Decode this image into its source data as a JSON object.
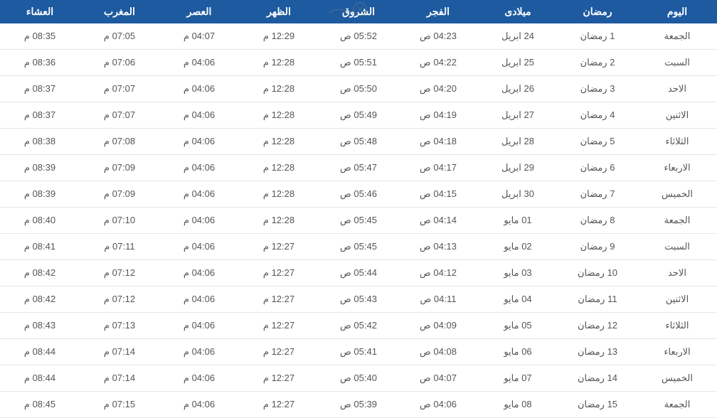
{
  "table": {
    "header_bg": "#1e5aa0",
    "header_fg": "#ffffff",
    "row_bg": "#ffffff",
    "row_fg": "#555555",
    "border_color": "#e5e5e5",
    "columns": [
      "اليوم",
      "رمضان",
      "ميلادى",
      "الفجر",
      "الشروق",
      "الظهر",
      "العصر",
      "المغرب",
      "العشاء"
    ],
    "rows": [
      [
        "الجمعة",
        "1 رمضان",
        "24 ابريل",
        "04:23 ص",
        "05:52 ص",
        "12:29 م",
        "04:07 م",
        "07:05 م",
        "08:35 م"
      ],
      [
        "السبت",
        "2 رمضان",
        "25 ابريل",
        "04:22 ص",
        "05:51 ص",
        "12:28 م",
        "04:06 م",
        "07:06 م",
        "08:36 م"
      ],
      [
        "الاحد",
        "3 رمضان",
        "26 ابريل",
        "04:20 ص",
        "05:50 ص",
        "12:28 م",
        "04:06 م",
        "07:07 م",
        "08:37 م"
      ],
      [
        "الاثنين",
        "4 رمضان",
        "27 ابريل",
        "04:19 ص",
        "05:49 ص",
        "12:28 م",
        "04:06 م",
        "07:07 م",
        "08:37 م"
      ],
      [
        "الثلاثاء",
        "5 رمضان",
        "28 ابريل",
        "04:18 ص",
        "05:48 ص",
        "12:28 م",
        "04:06 م",
        "07:08 م",
        "08:38 م"
      ],
      [
        "الاربعاء",
        "6 رمضان",
        "29 ابريل",
        "04:17 ص",
        "05:47 ص",
        "12:28 م",
        "04:06 م",
        "07:09 م",
        "08:39 م"
      ],
      [
        "الخميس",
        "7 رمضان",
        "30 ابريل",
        "04:15 ص",
        "05:46 ص",
        "12:28 م",
        "04:06 م",
        "07:09 م",
        "08:39 م"
      ],
      [
        "الجمعة",
        "8 رمضان",
        "01 مايو",
        "04:14 ص",
        "05:45 ص",
        "12:28 م",
        "04:06 م",
        "07:10 م",
        "08:40 م"
      ],
      [
        "السبت",
        "9 رمضان",
        "02 مايو",
        "04:13 ص",
        "05:45 ص",
        "12:27 م",
        "04:06 م",
        "07:11 م",
        "08:41 م"
      ],
      [
        "الاحد",
        "10 رمضان",
        "03 مايو",
        "04:12 ص",
        "05:44 ص",
        "12:27 م",
        "04:06 م",
        "07:12 م",
        "08:42 م"
      ],
      [
        "الاثنين",
        "11 رمضان",
        "04 مايو",
        "04:11 ص",
        "05:43 ص",
        "12:27 م",
        "04:06 م",
        "07:12 م",
        "08:42 م"
      ],
      [
        "الثلاثاء",
        "12 رمضان",
        "05 مايو",
        "04:09 ص",
        "05:42 ص",
        "12:27 م",
        "04:06 م",
        "07:13 م",
        "08:43 م"
      ],
      [
        "الاربعاء",
        "13 رمضان",
        "06 مايو",
        "04:08 ص",
        "05:41 ص",
        "12:27 م",
        "04:06 م",
        "07:14 م",
        "08:44 م"
      ],
      [
        "الخميس",
        "14 رمضان",
        "07 مايو",
        "04:07 ص",
        "05:40 ص",
        "12:27 م",
        "04:06 م",
        "07:14 م",
        "08:44 م"
      ],
      [
        "الجمعة",
        "15 رمضان",
        "08 مايو",
        "04:06 ص",
        "05:39 ص",
        "12:27 م",
        "04:06 م",
        "07:15 م",
        "08:45 م"
      ]
    ]
  }
}
